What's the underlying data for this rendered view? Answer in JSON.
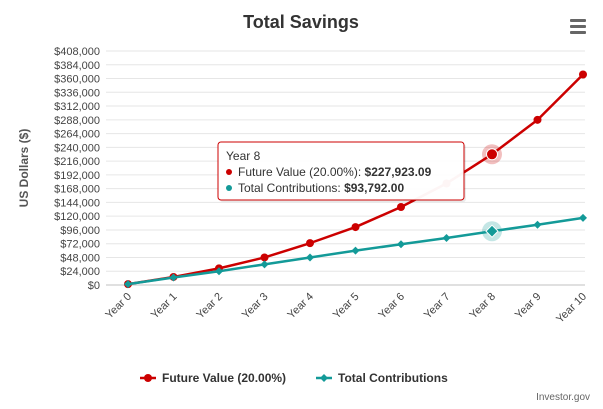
{
  "menu_icon": "hamburger-menu-icon",
  "credit": "Investor.gov",
  "chart_data": {
    "type": "line",
    "title": "Total Savings",
    "xlabel": "",
    "ylabel": "US Dollars ($)",
    "categories": [
      "Year 0",
      "Year 1",
      "Year 2",
      "Year 3",
      "Year 4",
      "Year 5",
      "Year 6",
      "Year 7",
      "Year 8",
      "Year 9",
      "Year 10"
    ],
    "yticks": [
      "$0",
      "$24,000",
      "$48,000",
      "$72,000",
      "$96,000",
      "$120,000",
      "$144,000",
      "$168,000",
      "$192,000",
      "$216,000",
      "$240,000",
      "$264,000",
      "$288,000",
      "$312,000",
      "$336,000",
      "$360,000",
      "$384,000",
      "$408,000"
    ],
    "ylim": [
      0,
      408000
    ],
    "grid": true,
    "legend_position": "bottom",
    "series": [
      {
        "name": "Future Value (20.00%)",
        "color": "#cc0000",
        "marker": "circle",
        "values": [
          1500,
          14000,
          29000,
          48000,
          73000,
          101000,
          136000,
          177000,
          227923.09,
          288000,
          367000
        ]
      },
      {
        "name": "Total Contributions",
        "color": "#139a98",
        "marker": "diamond",
        "values": [
          1500,
          13000,
          24000,
          36000,
          48000,
          60000,
          71000,
          82000,
          93792,
          105000,
          117000
        ]
      }
    ],
    "tooltip": {
      "header": "Year 8",
      "lines": [
        {
          "label": "Future Value (20.00%): ",
          "value": "$227,923.09",
          "color": "#cc0000"
        },
        {
          "label": "Total Contributions: ",
          "value": "$93,792.00",
          "color": "#139a98"
        }
      ],
      "highlight_index": 8
    }
  }
}
